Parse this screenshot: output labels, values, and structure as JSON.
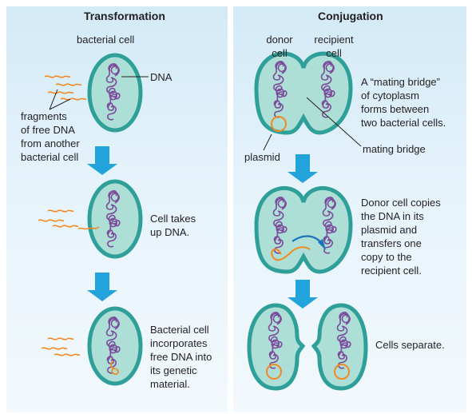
{
  "transformation": {
    "title": "Transformation",
    "bacterial_cell_label": "bacterial cell",
    "dna_label": "DNA",
    "fragments_label": [
      "fragments",
      "of free DNA",
      "from another",
      "bacterial cell"
    ],
    "step2_label": [
      "Cell takes",
      "up DNA."
    ],
    "step3_label": [
      "Bacterial cell",
      "incorporates",
      "free DNA into",
      "its genetic",
      "material."
    ]
  },
  "conjugation": {
    "title": "Conjugation",
    "donor_label": [
      "donor",
      "cell"
    ],
    "recipient_label": [
      "recipient",
      "cell"
    ],
    "bridge_note": [
      "A “mating bridge”",
      "of cytoplasm",
      "forms between",
      "two bacterial cells."
    ],
    "plasmid_label": "plasmid",
    "mating_bridge_label": "mating bridge",
    "step2_label": [
      "Donor cell copies",
      "the DNA in its",
      "plasmid and",
      "transfers one",
      "copy to the",
      "recipient cell."
    ],
    "step3_label": "Cells separate."
  },
  "colors": {
    "panel_top": "#d3eaf7",
    "cell_fill": "#aedfd6",
    "cell_stroke": "#2f9f9a",
    "dna_purple": "#7b4a9c",
    "dna_orange": "#f08a24",
    "arrow_blue": "#22a3dc"
  }
}
